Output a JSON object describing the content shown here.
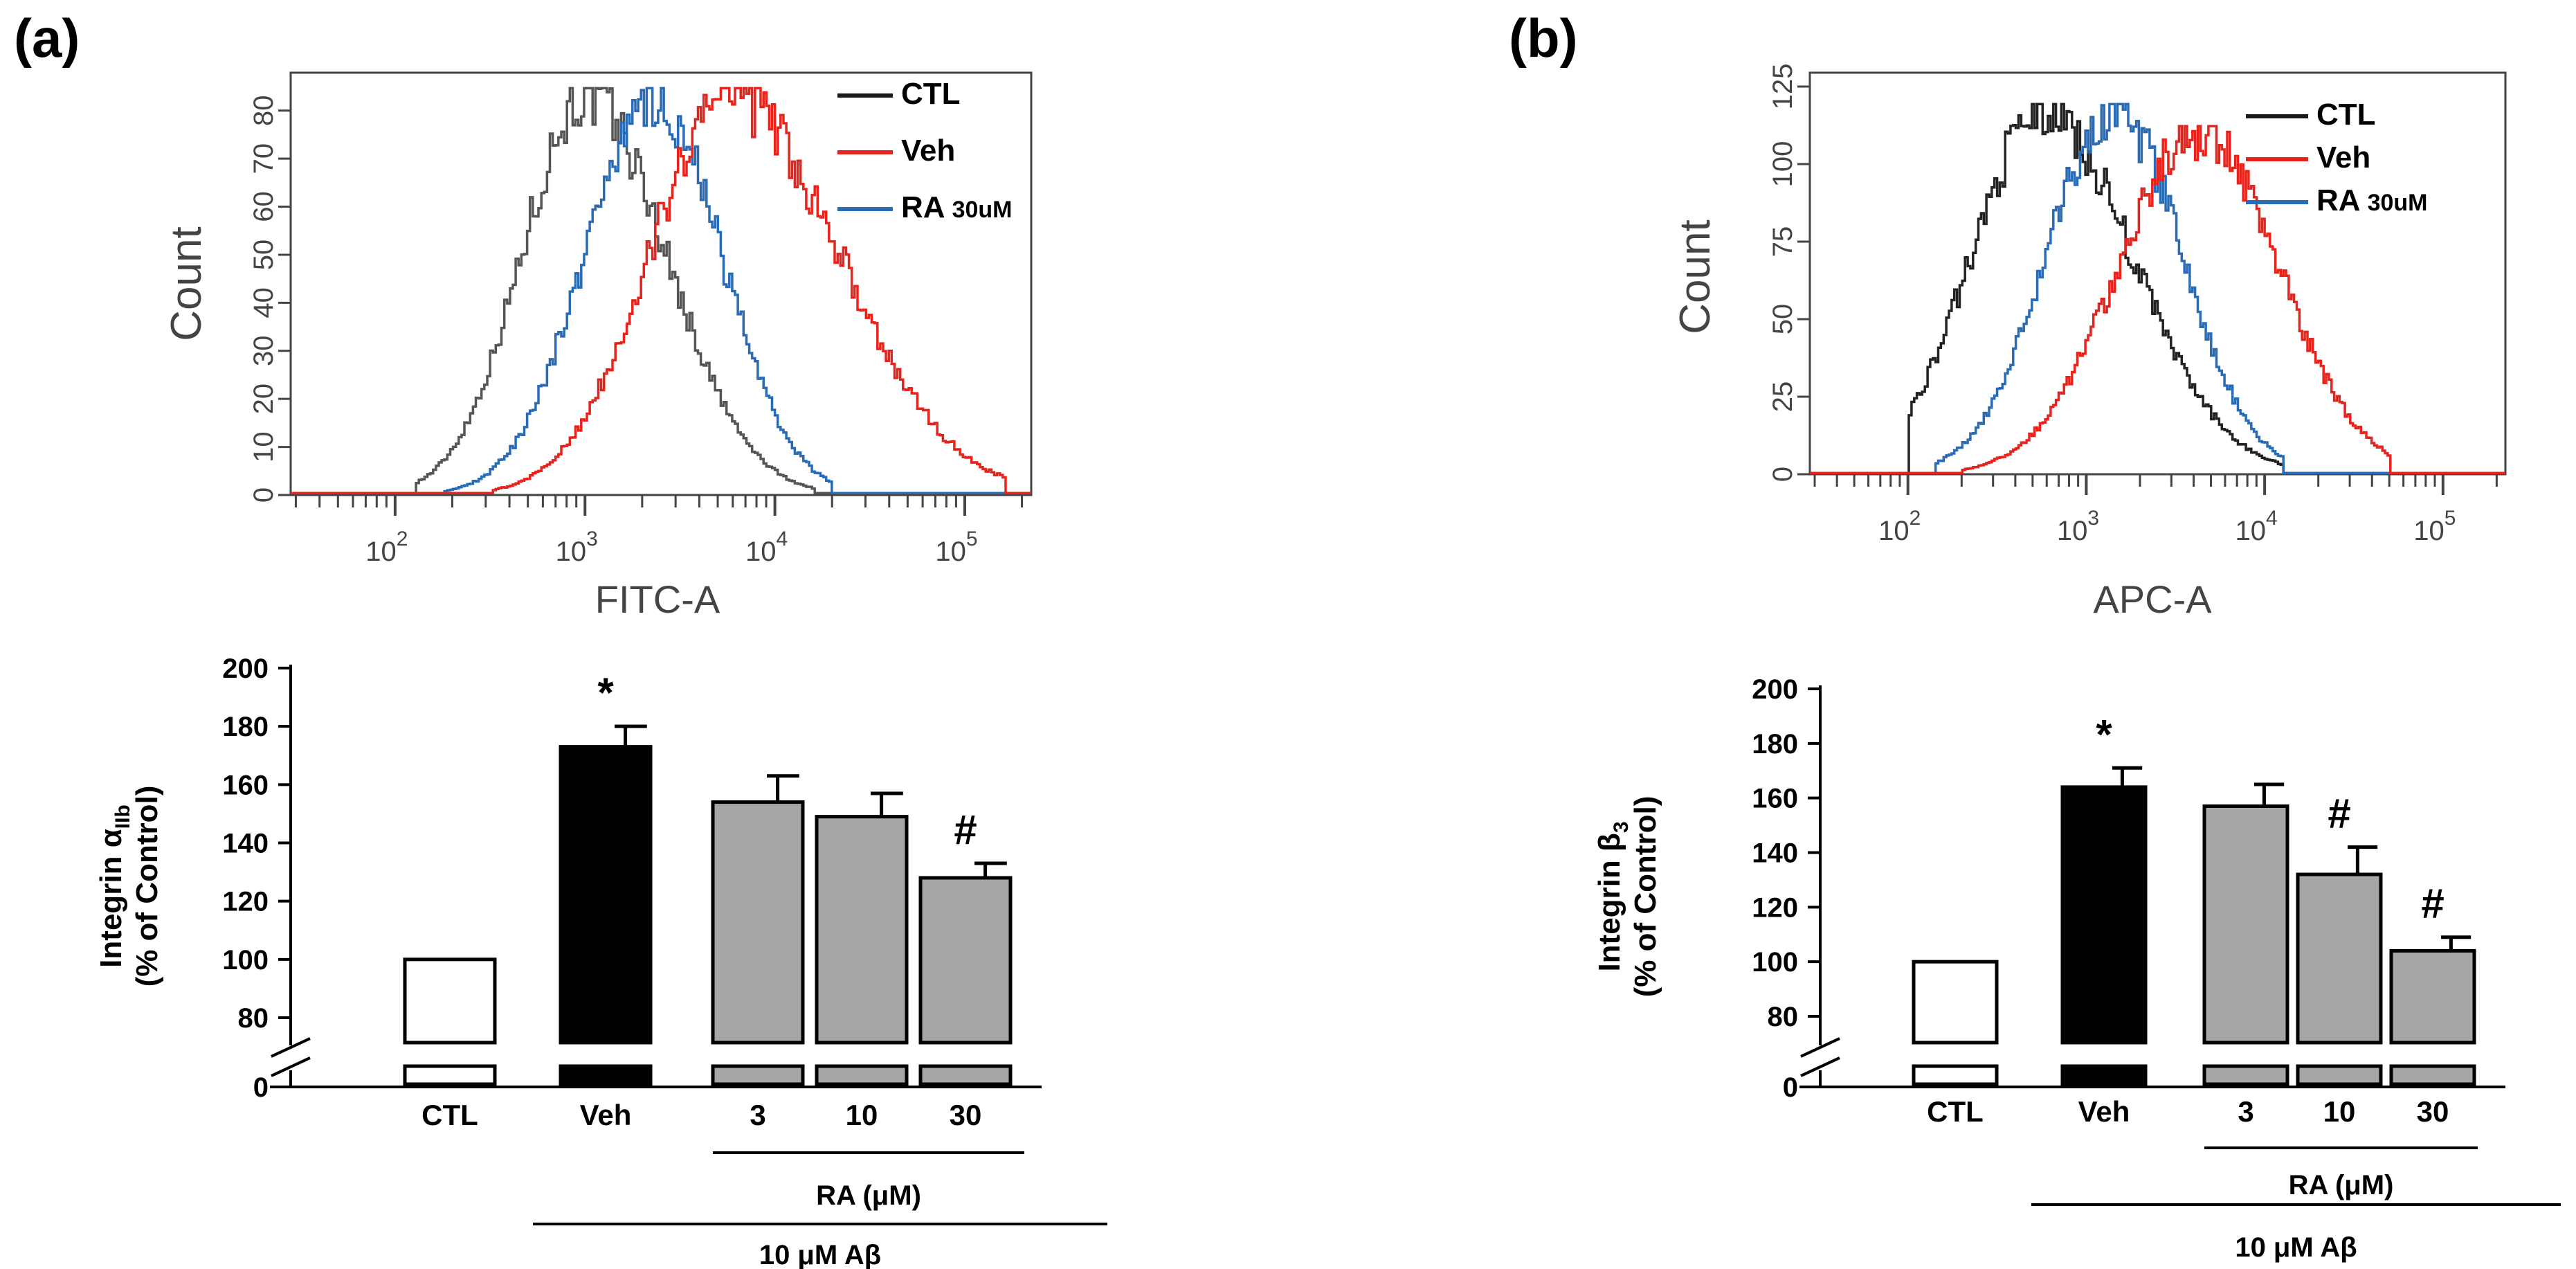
{
  "panels": [
    {
      "label": "(a)",
      "flow": {
        "ylabel": "Count",
        "xlabel": "FITC-A",
        "yticks": [
          "0",
          "10",
          "20",
          "30",
          "40",
          "50",
          "60",
          "70",
          "80"
        ],
        "ymax": 85,
        "xtick_labels": [
          {
            "log": 2,
            "label": "10^2"
          },
          {
            "log": 3,
            "label": "10^3"
          },
          {
            "log": 4,
            "label": "10^4"
          },
          {
            "log": 5,
            "label": "10^5"
          }
        ],
        "xrange_log": [
          1.45,
          5.35
        ],
        "legend": [
          {
            "name": "CTL",
            "suffix": "",
            "color": "#1a1a1a"
          },
          {
            "name": "Veh",
            "suffix": "",
            "color": "#e8231c"
          },
          {
            "name": "RA",
            "suffix": "30uM",
            "color": "#2a6bb5"
          }
        ],
        "histograms": [
          {
            "name": "CTL",
            "color": "#555555",
            "peak_log": 3.0,
            "peak": 83,
            "sd_left": 0.34,
            "sd_right": 0.42,
            "start": 2.1,
            "end": 4.2
          },
          {
            "name": "RA 30uM",
            "color": "#2a6bb5",
            "peak_log": 3.35,
            "peak": 83,
            "sd_left": 0.36,
            "sd_right": 0.36,
            "start": 2.25,
            "end": 4.3
          },
          {
            "name": "Veh",
            "color": "#e8231c",
            "peak_log": 3.75,
            "peak": 83,
            "sd_left": 0.42,
            "sd_right": 0.58,
            "start": 2.5,
            "end": 5.2
          }
        ]
      },
      "chart_data": {
        "type": "bar",
        "ylabel": "Integrin α_IIb",
        "ylabel_main": "Integrin α",
        "ylabel_sub": "IIb",
        "ylabel2": "(% of Control)",
        "ylim": [
          0,
          200
        ],
        "yticks": [
          "0",
          "80",
          "100",
          "120",
          "140",
          "160",
          "180",
          "200"
        ],
        "categories": [
          "CTL",
          "Veh",
          "3",
          "10",
          "30"
        ],
        "values": [
          100,
          173,
          154,
          149,
          128
        ],
        "errors": [
          0,
          7,
          9,
          8,
          5
        ],
        "fill": [
          "#ffffff",
          "#000000",
          "#a6a6a6",
          "#a6a6a6",
          "#a6a6a6"
        ],
        "annotations": [
          "",
          "*",
          "",
          "",
          "#"
        ],
        "group_ra": "RA (μM)",
        "group_abeta": "10 μM Aβ"
      }
    },
    {
      "label": "(b)",
      "flow": {
        "ylabel": "Count",
        "xlabel": "APC-A",
        "yticks": [
          "0",
          "25",
          "50",
          "75",
          "100",
          "125"
        ],
        "ymax": 125,
        "xtick_labels": [
          {
            "log": 2,
            "label": "10^2"
          },
          {
            "log": 3,
            "label": "10^3"
          },
          {
            "log": 4,
            "label": "10^4"
          },
          {
            "log": 5,
            "label": "10^5"
          }
        ],
        "xrange_log": [
          1.45,
          5.35
        ],
        "legend": [
          {
            "name": "CTL",
            "suffix": "",
            "color": "#1a1a1a"
          },
          {
            "name": "Veh",
            "suffix": "",
            "color": "#e8231c"
          },
          {
            "name": "RA",
            "suffix": "30uM",
            "color": "#2a6bb5"
          }
        ],
        "histograms": [
          {
            "name": "CTL",
            "color": "#222222",
            "peak_log": 2.75,
            "peak": 117,
            "sd_left": 0.4,
            "sd_right": 0.5,
            "start": 2.0,
            "end": 4.1
          },
          {
            "name": "RA 30uM",
            "color": "#2a6bb5",
            "peak_log": 3.15,
            "peak": 117,
            "sd_left": 0.38,
            "sd_right": 0.38,
            "start": 2.15,
            "end": 4.1
          },
          {
            "name": "Veh",
            "color": "#e8231c",
            "peak_log": 3.62,
            "peak": 110,
            "sd_left": 0.45,
            "sd_right": 0.45,
            "start": 2.3,
            "end": 4.7
          }
        ]
      },
      "chart_data": {
        "type": "bar",
        "ylabel": "Integrin β_3",
        "ylabel_main": "Integrin β",
        "ylabel_sub": "3",
        "ylabel2": "(% of Control)",
        "ylim": [
          0,
          200
        ],
        "yticks": [
          "0",
          "80",
          "100",
          "120",
          "140",
          "160",
          "180",
          "200"
        ],
        "categories": [
          "CTL",
          "Veh",
          "3",
          "10",
          "30"
        ],
        "values": [
          100,
          164,
          157,
          132,
          104
        ],
        "errors": [
          0,
          7,
          8,
          10,
          5
        ],
        "fill": [
          "#ffffff",
          "#000000",
          "#a6a6a6",
          "#a6a6a6",
          "#a6a6a6"
        ],
        "annotations": [
          "",
          "*",
          "",
          "#",
          "#"
        ],
        "group_ra": "RA (μM)",
        "group_abeta": "10 μM Aβ"
      }
    }
  ]
}
